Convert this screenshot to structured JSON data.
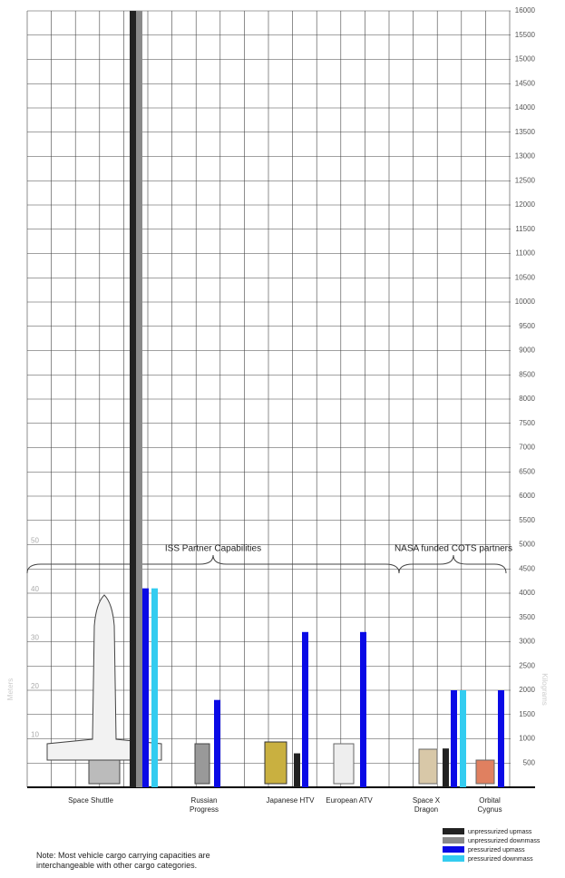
{
  "chart_data": {
    "type": "bar",
    "categories": [
      "Space Shuttle",
      "Russian Progress",
      "Japanese HTV",
      "European ATV",
      "Space X Dragon",
      "Orbital Cygnus"
    ],
    "series": [
      {
        "name": "unpressurized upmass",
        "color": "#222222",
        "values": [
          16000,
          null,
          700,
          null,
          800,
          null
        ]
      },
      {
        "name": "unpressurized downmass",
        "color": "#8a8a8a",
        "values": [
          16000,
          null,
          null,
          null,
          null,
          null
        ]
      },
      {
        "name": "pressurized upmass",
        "color": "#0a0ae6",
        "values": [
          4100,
          1800,
          3200,
          3200,
          2000,
          2000
        ]
      },
      {
        "name": "pressurized downmass",
        "color": "#33ccf0",
        "values": [
          4100,
          null,
          null,
          null,
          2000,
          null
        ]
      }
    ],
    "ylim": [
      0,
      16000
    ],
    "yticks": [
      500,
      1000,
      1500,
      2000,
      2500,
      3000,
      3500,
      4000,
      4500,
      5000,
      5500,
      6000,
      6500,
      7000,
      7500,
      8000,
      8500,
      9000,
      9500,
      10000,
      10500,
      11000,
      11500,
      12000,
      12500,
      13000,
      13500,
      14000,
      14500,
      15000,
      15500,
      16000
    ],
    "y2lim": [
      0,
      160
    ],
    "y2ticks": [
      10,
      20,
      30,
      40,
      50
    ],
    "ylabel": "Kilograms",
    "y2label": "Meters",
    "annotations": [
      "ISS Partner Capabilities",
      "NASA funded COTS partners"
    ],
    "note": "Note: Most vehicle cargo carrying capacities are interchangeable with other cargo categories.",
    "grid": true
  }
}
